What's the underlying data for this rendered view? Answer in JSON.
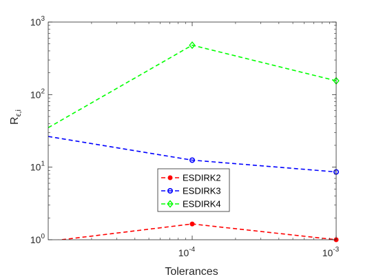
{
  "chart_data": {
    "type": "line",
    "xscale": "log",
    "yscale": "log",
    "xlabel": "Tolerances",
    "ylabel": "R",
    "ylabel_subscript": "ϵ,i",
    "xlim": [
      1e-05,
      0.001
    ],
    "ylim": [
      1,
      1000
    ],
    "x_ticks": [
      {
        "value": 0.0001,
        "base": "10",
        "exp": "-4"
      },
      {
        "value": 0.001,
        "base": "10",
        "exp": "-3"
      }
    ],
    "y_ticks": [
      {
        "value": 1,
        "base": "10",
        "exp": "0"
      },
      {
        "value": 10,
        "base": "10",
        "exp": "1"
      },
      {
        "value": 100,
        "base": "10",
        "exp": "2"
      },
      {
        "value": 1000,
        "base": "10",
        "exp": "3"
      }
    ],
    "grid": false,
    "legend_position": "center-bottom",
    "series": [
      {
        "name": "ESDIRK2",
        "color": "#ff0000",
        "marker": "dot",
        "x": [
          1e-05,
          0.0001,
          0.001
        ],
        "y": [
          0.95,
          1.65,
          1.0
        ]
      },
      {
        "name": "ESDIRK3",
        "color": "#0000ff",
        "marker": "circle",
        "x": [
          1e-05,
          0.0001,
          0.001
        ],
        "y": [
          26.5,
          12.5,
          8.6
        ]
      },
      {
        "name": "ESDIRK4",
        "color": "#00ff00",
        "marker": "diamond",
        "x": [
          1e-05,
          0.0001,
          0.001
        ],
        "y": [
          35,
          480,
          155
        ]
      }
    ]
  }
}
